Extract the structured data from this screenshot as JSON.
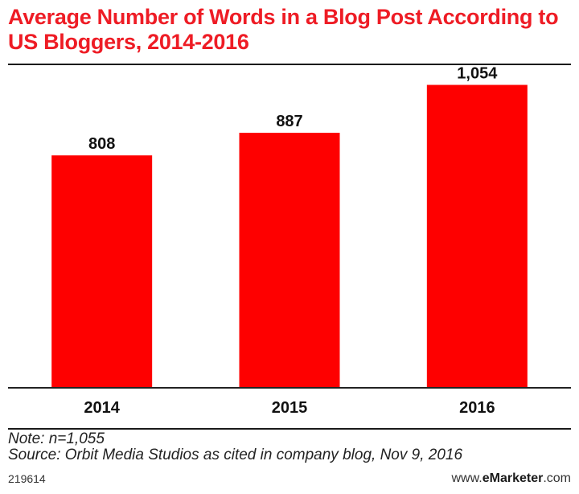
{
  "title": "Average Number of Words in a Blog Post According to US Bloggers, 2014-2016",
  "note": "Note: n=1,055",
  "source": "Source: Orbit Media Studios as cited in company blog, Nov 9, 2016",
  "chart_id": "219614",
  "site": {
    "prefix": "www.",
    "brand": "eMarketer",
    "suffix": ".com"
  },
  "colors": {
    "bar": "#fe0000",
    "title": "#ee1c25",
    "label": "#111111"
  },
  "chart_data": {
    "type": "bar",
    "categories": [
      "2014",
      "2015",
      "2016"
    ],
    "values": [
      808,
      887,
      1054
    ],
    "value_labels": [
      "808",
      "887",
      "1,054"
    ],
    "title": "Average Number of Words in a Blog Post According to US Bloggers, 2014-2016",
    "xlabel": "",
    "ylabel": "",
    "ylim": [
      0,
      1120
    ],
    "grid": false
  }
}
